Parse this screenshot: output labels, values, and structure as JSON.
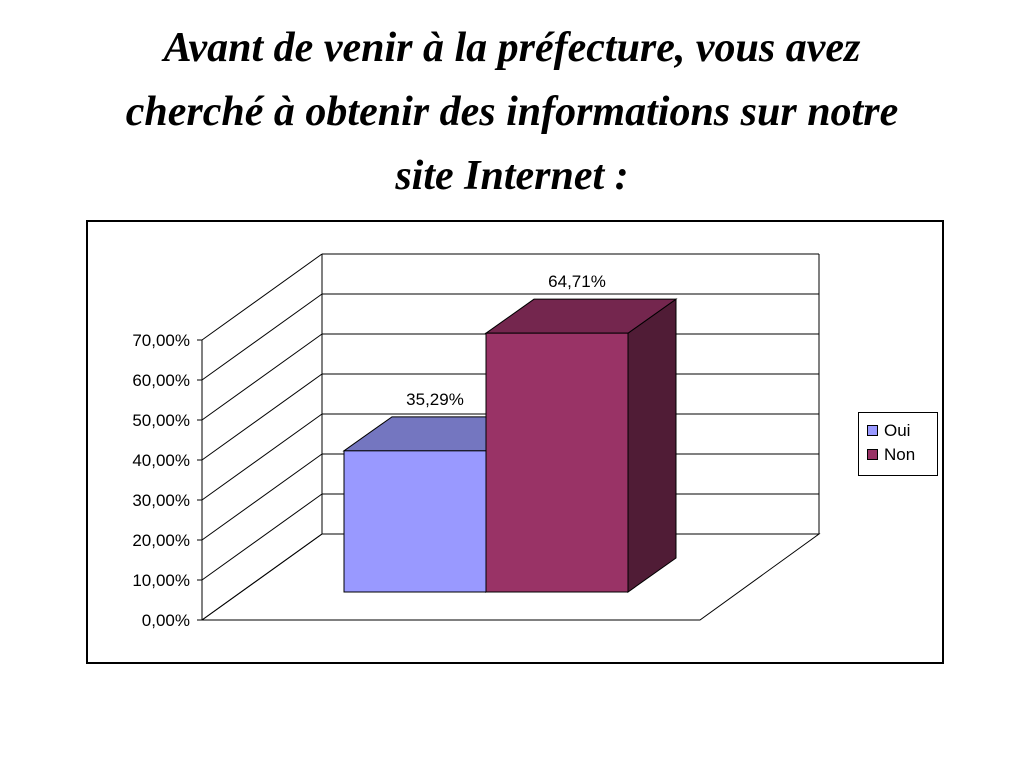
{
  "slide": {
    "title_lines": [
      "Avant de venir à la préfecture, vous avez",
      "cherché à obtenir des informations sur notre",
      "site Internet :"
    ]
  },
  "chart_data": {
    "type": "bar",
    "style": "3d-clustered-column",
    "categories": [
      ""
    ],
    "series": [
      {
        "name": "Oui",
        "values": [
          35.29
        ],
        "label": "35,29%",
        "color": "#9999ff",
        "top_color": "#7476c0",
        "side_color": "#5b5d99"
      },
      {
        "name": "Non",
        "values": [
          64.71
        ],
        "label": "64,71%",
        "color": "#993366",
        "top_color": "#74264e",
        "side_color": "#501c36"
      }
    ],
    "y_ticks": [
      "0,00%",
      "10,00%",
      "20,00%",
      "30,00%",
      "40,00%",
      "50,00%",
      "60,00%",
      "70,00%"
    ],
    "ylim": [
      0,
      70
    ],
    "gridlines": true,
    "legend_position": "right",
    "title": "",
    "xlabel": "",
    "ylabel": ""
  }
}
